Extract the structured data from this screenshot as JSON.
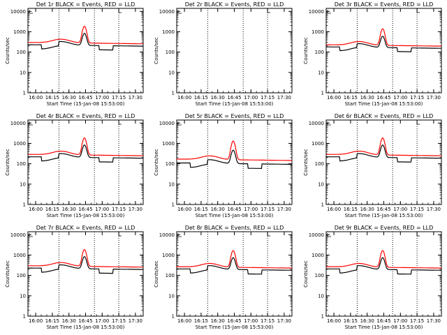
{
  "chart_data": [
    {
      "type": "line",
      "title": "Det 1r BLACK = Events, RED = LLD",
      "xlabel": "Start Time (15-Jan-08 15:53:00)",
      "ylabel": "Counts/sec",
      "x_ticks": [
        "16:00",
        "16:15",
        "16:30",
        "16:45",
        "17:00",
        "17:15",
        "17:30"
      ],
      "y_ticks": [
        "1",
        "10",
        "100",
        "1000",
        "10000"
      ],
      "y_scale": "log",
      "ylim": [
        1,
        14000
      ],
      "series": [
        {
          "color": "#000000",
          "peak": 900,
          "base": 230,
          "dip": 0.62
        },
        {
          "color": "#ff0000",
          "peak": 2000,
          "base": 300,
          "dip": 1.0
        }
      ]
    },
    {
      "type": "line",
      "title": "Det 2r BLACK = Events, RED = LLD",
      "xlabel": "Start Time (15-Jan-08 15:53:00)",
      "ylabel": "Counts/sec",
      "x_ticks": [
        "16:00",
        "16:15",
        "16:30",
        "16:45",
        "17:00",
        "17:15",
        "17:30"
      ],
      "y_ticks": [
        "1",
        "10",
        "100",
        "1000",
        "10000"
      ],
      "y_scale": "log",
      "ylim": [
        1,
        14000
      ],
      "series": []
    },
    {
      "type": "line",
      "title": "Det 3r BLACK = Events, RED = LLD",
      "xlabel": "Start Time (15-Jan-08 15:53:00)",
      "ylabel": "Counts/sec",
      "x_ticks": [
        "16:00",
        "16:15",
        "16:30",
        "16:45",
        "17:00",
        "17:15",
        "17:30"
      ],
      "y_ticks": [
        "1",
        "10",
        "100",
        "1000",
        "10000"
      ],
      "y_scale": "log",
      "ylim": [
        1,
        14000
      ],
      "series": [
        {
          "color": "#000000",
          "peak": 650,
          "base": 180,
          "dip": 0.65
        },
        {
          "color": "#ff0000",
          "peak": 1500,
          "base": 230,
          "dip": 1.0
        }
      ]
    },
    {
      "type": "line",
      "title": "Det 4r BLACK = Events, RED = LLD",
      "xlabel": "Start Time (15-Jan-08 15:53:00)",
      "ylabel": "Counts/sec",
      "x_ticks": [
        "16:00",
        "16:15",
        "16:30",
        "16:45",
        "17:00",
        "17:15",
        "17:30"
      ],
      "y_ticks": [
        "1",
        "10",
        "100",
        "1000",
        "10000"
      ],
      "y_scale": "log",
      "ylim": [
        1,
        14000
      ],
      "series": [
        {
          "color": "#000000",
          "peak": 900,
          "base": 220,
          "dip": 0.62
        },
        {
          "color": "#ff0000",
          "peak": 2000,
          "base": 290,
          "dip": 1.0
        }
      ]
    },
    {
      "type": "line",
      "title": "Det 5r BLACK = Events, RED = LLD",
      "xlabel": "Start Time (15-Jan-08 15:53:00)",
      "ylabel": "Counts/sec",
      "x_ticks": [
        "16:00",
        "16:15",
        "16:30",
        "16:45",
        "17:00",
        "17:15",
        "17:30"
      ],
      "y_ticks": [
        "1",
        "10",
        "100",
        "1000",
        "10000"
      ],
      "y_scale": "log",
      "ylim": [
        1,
        14000
      ],
      "series": [
        {
          "color": "#000000",
          "peak": 500,
          "base": 110,
          "dip": 0.6
        },
        {
          "color": "#ff0000",
          "peak": 1400,
          "base": 170,
          "dip": 1.0
        }
      ]
    },
    {
      "type": "line",
      "title": "Det 6r BLACK = Events, RED = LLD",
      "xlabel": "Start Time (15-Jan-08 15:53:00)",
      "ylabel": "Counts/sec",
      "x_ticks": [
        "16:00",
        "16:15",
        "16:30",
        "16:45",
        "17:00",
        "17:15",
        "17:30"
      ],
      "y_ticks": [
        "1",
        "10",
        "100",
        "1000",
        "10000"
      ],
      "y_scale": "log",
      "ylim": [
        1,
        14000
      ],
      "series": [
        {
          "color": "#000000",
          "peak": 900,
          "base": 220,
          "dip": 0.62
        },
        {
          "color": "#ff0000",
          "peak": 2000,
          "base": 290,
          "dip": 1.0
        }
      ]
    },
    {
      "type": "line",
      "title": "Det 7r BLACK = Events, RED = LLD",
      "xlabel": "Start Time (15-Jan-08 15:53:00)",
      "ylabel": "Counts/sec",
      "x_ticks": [
        "16:00",
        "16:15",
        "16:30",
        "16:45",
        "17:00",
        "17:15",
        "17:30"
      ],
      "y_ticks": [
        "1",
        "10",
        "100",
        "1000",
        "10000"
      ],
      "y_scale": "log",
      "ylim": [
        1,
        14000
      ],
      "series": [
        {
          "color": "#000000",
          "peak": 900,
          "base": 230,
          "dip": 0.62
        },
        {
          "color": "#ff0000",
          "peak": 2000,
          "base": 300,
          "dip": 1.0
        }
      ]
    },
    {
      "type": "line",
      "title": "Det 8r BLACK = Events, RED = LLD",
      "xlabel": "Start Time (15-Jan-08 15:53:00)",
      "ylabel": "Counts/sec",
      "x_ticks": [
        "16:00",
        "16:15",
        "16:30",
        "16:45",
        "17:00",
        "17:15",
        "17:30"
      ],
      "y_ticks": [
        "1",
        "10",
        "100",
        "1000",
        "10000"
      ],
      "y_scale": "log",
      "ylim": [
        1,
        14000
      ],
      "series": [
        {
          "color": "#000000",
          "peak": 800,
          "base": 210,
          "dip": 0.62
        },
        {
          "color": "#ff0000",
          "peak": 1800,
          "base": 270,
          "dip": 1.0
        }
      ]
    },
    {
      "type": "line",
      "title": "Det 9r BLACK = Events, RED = LLD",
      "xlabel": "Start Time (15-Jan-08 15:53:00)",
      "ylabel": "Counts/sec",
      "x_ticks": [
        "16:00",
        "16:15",
        "16:30",
        "16:45",
        "17:00",
        "17:15",
        "17:30"
      ],
      "y_ticks": [
        "1",
        "10",
        "100",
        "1000",
        "10000"
      ],
      "y_scale": "log",
      "ylim": [
        1,
        14000
      ],
      "series": [
        {
          "color": "#000000",
          "peak": 800,
          "base": 210,
          "dip": 0.62
        },
        {
          "color": "#ff0000",
          "peak": 1800,
          "base": 270,
          "dip": 1.0
        }
      ]
    }
  ]
}
